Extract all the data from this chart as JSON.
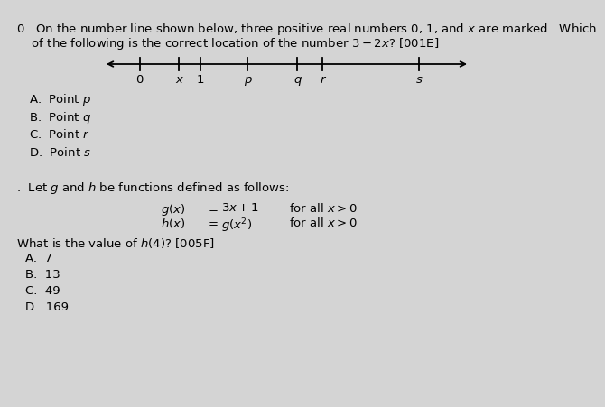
{
  "background_color": "#d4d4d4",
  "text_color": "#000000",
  "title_line1": "0.  On the number line shown below, three positive real numbers 0, 1, and $x$ are marked.  Which",
  "title_line2": "    of the following is the correct location of the number $3 - 2x$? [001E]",
  "number_line_labels": [
    "0",
    "x",
    "1",
    "p",
    "q",
    "r",
    "s"
  ],
  "number_line_positions": [
    0.0,
    0.55,
    0.85,
    1.5,
    2.2,
    2.55,
    3.9
  ],
  "nl_min": -0.5,
  "nl_max": 4.6,
  "choices_q0": [
    "A.  Point $p$",
    "B.  Point $q$",
    "C.  Point $r$",
    "D.  Point $s$"
  ],
  "separator_text": ".  Let $g$ and $h$ be functions defined as follows:",
  "choices_q1": [
    "A.  7",
    "B.  13",
    "C.  49",
    "D.  169"
  ],
  "question2": "What is the value of $h(4)$? [005F]",
  "font_size": 9.5,
  "font_size_nl": 9.5
}
